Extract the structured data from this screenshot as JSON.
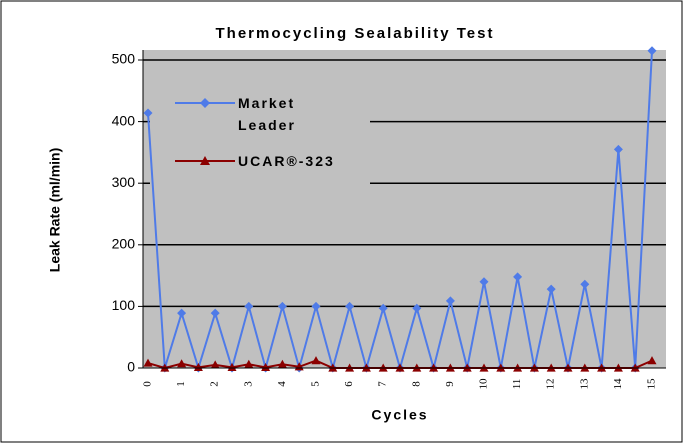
{
  "chart_data": {
    "type": "line",
    "title": "Thermocycling Sealability Test",
    "x_label": "Cycles",
    "y_label": "Leak Rate (ml/min)",
    "categories": [
      "0",
      null,
      "1",
      null,
      "2",
      null,
      "3",
      null,
      "4",
      null,
      "5",
      null,
      "6",
      null,
      "7",
      null,
      "8",
      null,
      "9",
      null,
      "10",
      null,
      "11",
      null,
      "12",
      null,
      "13",
      null,
      "14",
      null,
      "15"
    ],
    "series": [
      {
        "name": "Market Leader",
        "color": "#4f7be8",
        "marker": "diamond",
        "values": [
          414,
          0,
          89,
          0,
          89,
          0,
          100,
          0,
          100,
          0,
          100,
          0,
          100,
          0,
          97,
          0,
          97,
          0,
          109,
          0,
          140,
          0,
          148,
          0,
          128,
          0,
          136,
          0,
          355,
          0,
          515
        ]
      },
      {
        "name": "UCAR®-323",
        "color": "#8b0000",
        "marker": "triangle",
        "values": [
          8,
          0,
          7,
          1,
          5,
          1,
          6,
          1,
          6,
          2,
          12,
          0,
          0,
          0,
          0,
          0,
          0,
          0,
          0,
          0,
          0,
          0,
          0,
          0,
          0,
          0,
          0,
          0,
          0,
          0,
          12
        ]
      }
    ],
    "ylim": [
      0,
      500
    ],
    "yticks": [
      0,
      100,
      200,
      300,
      400,
      500
    ],
    "grid": true,
    "legend": "upper left"
  }
}
